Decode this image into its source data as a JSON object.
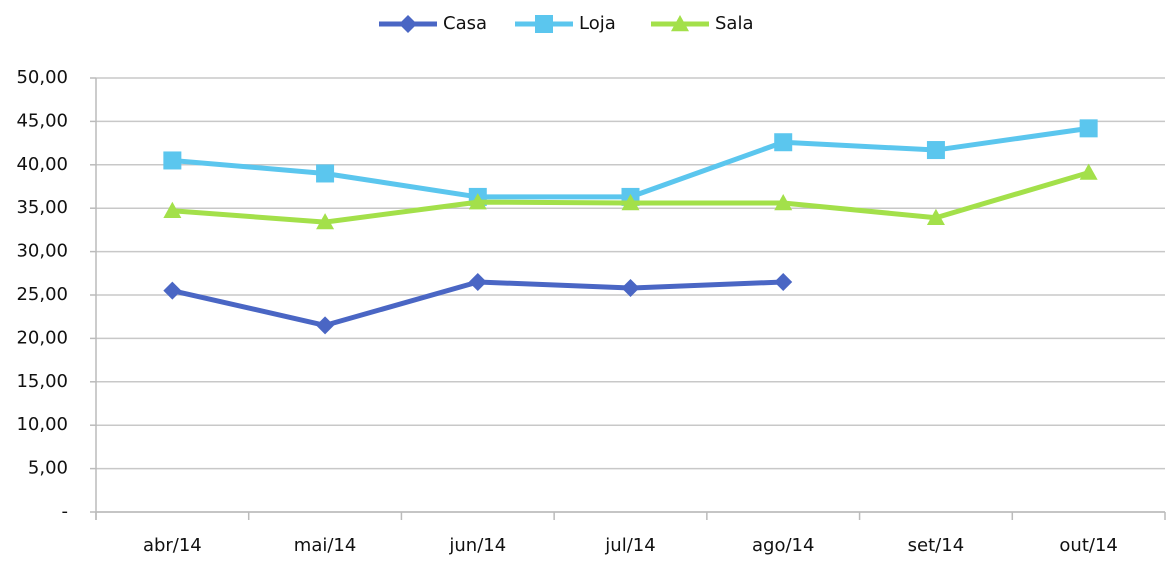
{
  "chart_data": {
    "type": "line",
    "categories": [
      "abr/14",
      "mai/14",
      "jun/14",
      "jul/14",
      "ago/14",
      "set/14",
      "out/14"
    ],
    "series": [
      {
        "name": "Casa",
        "color": "#4a66c4",
        "marker": "diamond",
        "values": [
          25.5,
          21.5,
          26.5,
          25.8,
          26.5,
          null,
          null
        ]
      },
      {
        "name": "Loja",
        "color": "#5bc6ee",
        "marker": "square",
        "values": [
          40.5,
          39.0,
          36.3,
          36.3,
          42.6,
          41.7,
          44.2
        ]
      },
      {
        "name": "Sala",
        "color": "#a3e04a",
        "marker": "triangle",
        "values": [
          34.7,
          33.4,
          35.7,
          35.6,
          35.6,
          33.9,
          39.1
        ]
      }
    ],
    "ylim": [
      0,
      50
    ],
    "yticks": [
      {
        "value": 0,
        "label": "-"
      },
      {
        "value": 5,
        "label": "5,00"
      },
      {
        "value": 10,
        "label": "10,00"
      },
      {
        "value": 15,
        "label": "15,00"
      },
      {
        "value": 20,
        "label": "20,00"
      },
      {
        "value": 25,
        "label": "25,00"
      },
      {
        "value": 30,
        "label": "30,00"
      },
      {
        "value": 35,
        "label": "35,00"
      },
      {
        "value": 40,
        "label": "40,00"
      },
      {
        "value": 45,
        "label": "45,00"
      },
      {
        "value": 50,
        "label": "50,00"
      }
    ],
    "grid": true,
    "legend": "top"
  }
}
